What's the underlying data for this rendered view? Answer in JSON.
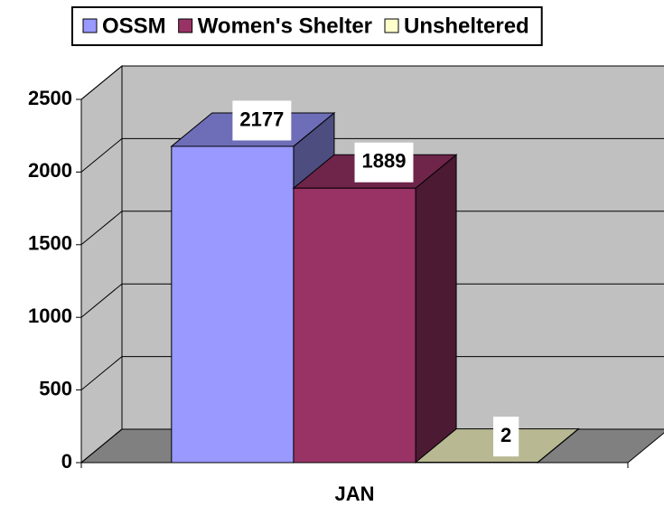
{
  "chart_data": {
    "type": "bar3d",
    "categories": [
      "JAN"
    ],
    "series": [
      {
        "name": "OSSM",
        "color": "#9999ff",
        "values": [
          2177
        ]
      },
      {
        "name": "Women's Shelter",
        "color": "#993366",
        "values": [
          1889
        ]
      },
      {
        "name": "Unsheltered",
        "color": "#ffffcc",
        "values": [
          2
        ]
      }
    ],
    "ylim": [
      0,
      2500
    ],
    "yticks": [
      0,
      500,
      1000,
      1500,
      2000,
      2500
    ],
    "grid": true,
    "legend": "top"
  }
}
